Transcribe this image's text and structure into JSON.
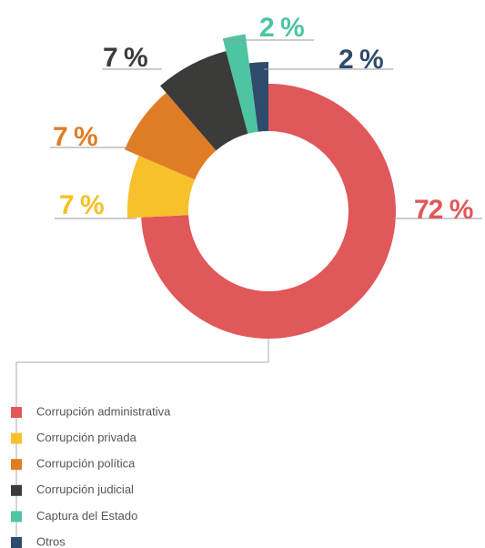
{
  "chart_data": {
    "type": "pie",
    "categories": [
      "Corrupción administrativa",
      "Corrupción privada",
      "Corrupción política",
      "Corrupción judicial",
      "Captura del Estado",
      "Otros"
    ],
    "values": [
      72,
      7,
      7,
      7,
      2,
      2
    ],
    "value_labels": [
      "72 %",
      "7 %",
      "7 %",
      "7 %",
      "2 %",
      "2 %"
    ],
    "colors": [
      "#e0585a",
      "#f6c12a",
      "#e07d24",
      "#3b3b39",
      "#4dc4a2",
      "#2f4b6c"
    ]
  }
}
